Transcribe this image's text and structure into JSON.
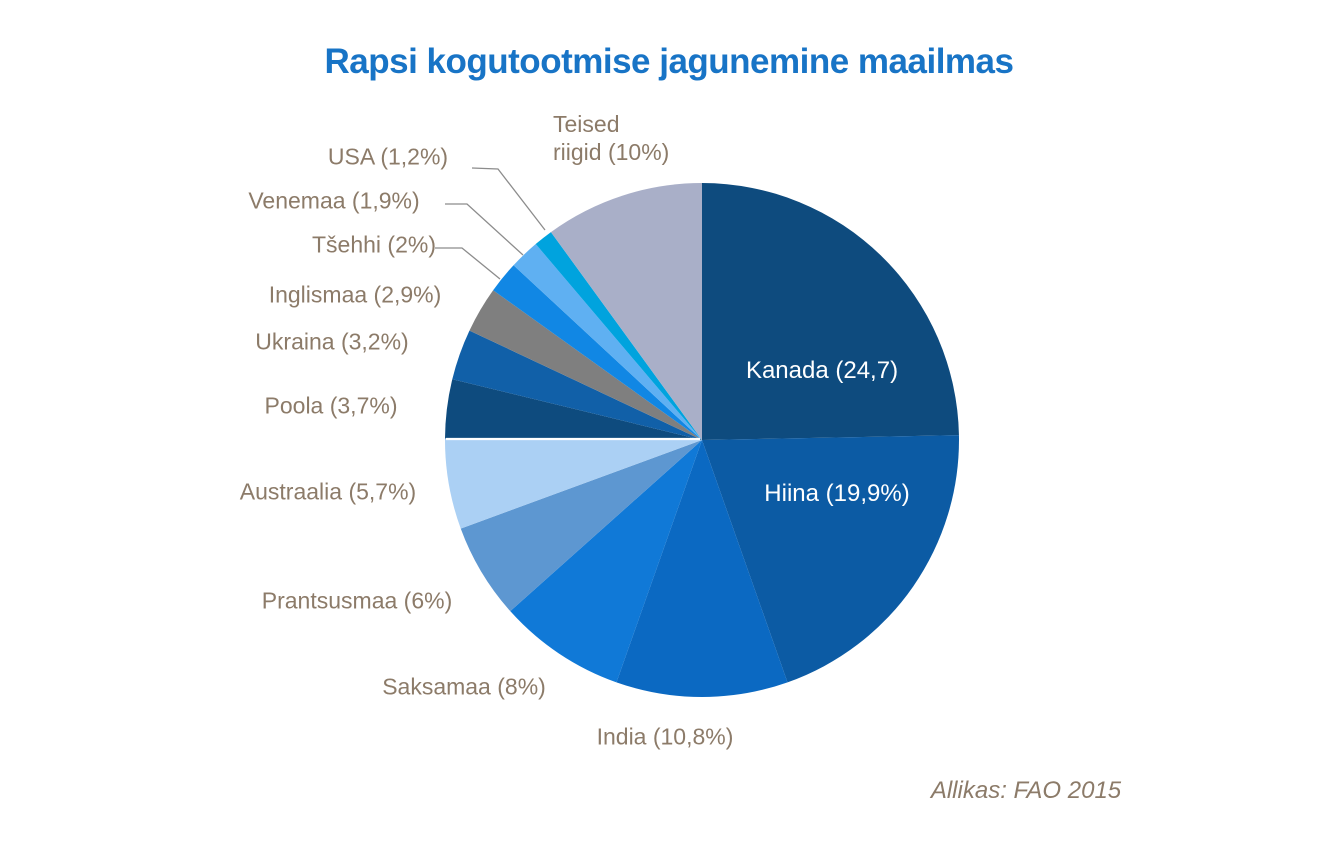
{
  "title": "Rapsi kogutootmise jagunemine maailmas",
  "source_note": "Allikas: FAO 2015",
  "colors": {
    "title_text": "#1874C6",
    "label_text": "#8C7B69",
    "inside_label_text": "#FFFFFF",
    "leader_line": "#8C8C8C",
    "background": "#FFFFFF"
  },
  "chart_data": {
    "type": "pie",
    "title": "Rapsi kogutootmise jagunemine maailmas",
    "source": "Allikas: FAO 2015",
    "unit": "%",
    "start_angle_deg": 0,
    "direction": "clockwise",
    "legend_position": "none",
    "slices": [
      {
        "id": "kanada",
        "name": "Kanada",
        "value": 24.7,
        "label": "Kanada (24,7)",
        "color": "#0E4B7E",
        "label_placement": "inside",
        "leader_line": false
      },
      {
        "id": "hiina",
        "name": "Hiina",
        "value": 19.9,
        "label": "Hiina (19,9%)",
        "color": "#0C5BA4",
        "label_placement": "inside",
        "leader_line": false
      },
      {
        "id": "india",
        "name": "India",
        "value": 10.8,
        "label": "India (10,8%)",
        "color": "#0B69C2",
        "label_placement": "outside",
        "leader_line": false
      },
      {
        "id": "saksamaa",
        "name": "Saksamaa",
        "value": 8,
        "label": "Saksamaa (8%)",
        "color": "#1079D7",
        "label_placement": "outside",
        "leader_line": false
      },
      {
        "id": "prantsusmaa",
        "name": "Prantsusmaa",
        "value": 6,
        "label": "Prantsusmaa (6%)",
        "color": "#5D97D1",
        "label_placement": "outside",
        "leader_line": false
      },
      {
        "id": "austraalia",
        "name": "Austraalia",
        "value": 5.7,
        "label": "Austraalia (5,7%)",
        "color": "#ABD0F4",
        "label_placement": "outside",
        "leader_line": false
      },
      {
        "id": "poola",
        "name": "Poola",
        "value": 3.7,
        "label": "Poola (3,7%)",
        "color": "#0E4B7E",
        "label_placement": "outside",
        "leader_line": false
      },
      {
        "id": "ukraina",
        "name": "Ukraina",
        "value": 3.2,
        "label": "Ukraina (3,2%)",
        "color": "#1160A8",
        "label_placement": "outside",
        "leader_line": false
      },
      {
        "id": "inglismaa",
        "name": "Inglismaa",
        "value": 2.9,
        "label": "Inglismaa (2,9%)",
        "color": "#7F7F7F",
        "label_placement": "outside",
        "leader_line": false
      },
      {
        "id": "tsehhi",
        "name": "Tšehhi",
        "value": 2,
        "label": "Tšehhi (2%)",
        "color": "#1187E4",
        "label_placement": "outside",
        "leader_line": true
      },
      {
        "id": "venemaa",
        "name": "Venemaa",
        "value": 1.9,
        "label": "Venemaa (1,9%)",
        "color": "#5FB0F2",
        "label_placement": "outside",
        "leader_line": true
      },
      {
        "id": "usa",
        "name": "USA",
        "value": 1.2,
        "label": "USA (1,2%)",
        "color": "#00A3DE",
        "label_placement": "outside",
        "leader_line": true
      },
      {
        "id": "teised-riigid",
        "name": "Teised riigid",
        "value": 10,
        "label": "Teised riigid (10%)",
        "label_lines": [
          "Teised",
          "riigid (10%)"
        ],
        "color": "#A9AFC8",
        "label_placement": "outside",
        "leader_line": false
      }
    ]
  }
}
